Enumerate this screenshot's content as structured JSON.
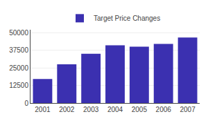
{
  "chart_data": {
    "type": "bar",
    "categories": [
      "2001",
      "2002",
      "2003",
      "2004",
      "2005",
      "2006",
      "2007"
    ],
    "series": [
      {
        "name": "Target Price Changes",
        "color": "#3B30B0",
        "values": [
          17000,
          27500,
          35000,
          41000,
          40000,
          42000,
          46500
        ]
      }
    ],
    "ylim": [
      0,
      52000
    ],
    "yticks": [
      0,
      12500,
      25000,
      37500,
      50000
    ],
    "grid": true,
    "legend": "top"
  }
}
